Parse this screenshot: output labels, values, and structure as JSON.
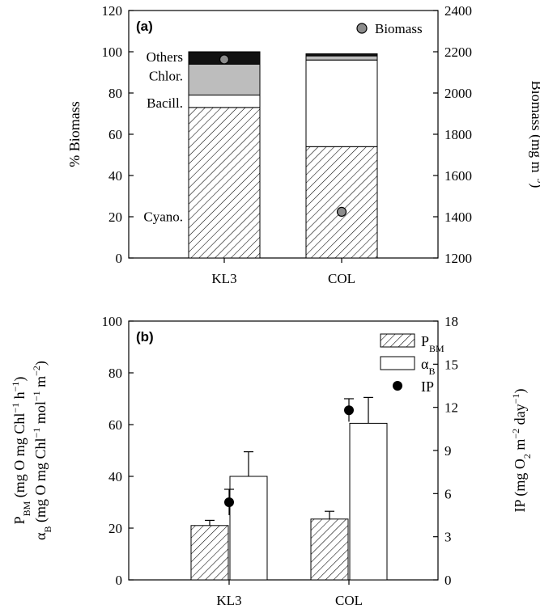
{
  "chart_data": [
    {
      "panel": "(a)",
      "type": "bar",
      "subtype": "stacked",
      "categories": [
        "KL3",
        "COL"
      ],
      "series": [
        {
          "name": "Cyano.",
          "values": [
            73,
            54
          ],
          "fill": "hatch"
        },
        {
          "name": "Bacill.",
          "values": [
            6,
            42
          ],
          "fill": "#ffffff"
        },
        {
          "name": "Chlor.",
          "values": [
            15,
            2
          ],
          "fill": "#bdbdbd"
        },
        {
          "name": "Others",
          "values": [
            6,
            1
          ],
          "fill": "#111111"
        }
      ],
      "points": {
        "name": "Biomass",
        "axis": "right",
        "values": [
          2163,
          1424
        ],
        "color": "#8c8c8c"
      },
      "ylabel": "% Biomass",
      "ylim": [
        0,
        120
      ],
      "yticks": [
        "0",
        "20",
        "40",
        "60",
        "80",
        "100",
        "120"
      ],
      "y2label": "Biomass (mg m",
      "y2label_sup": "−3",
      "y2label_end": ")",
      "y2lim": [
        1200,
        2400
      ],
      "y2ticks": [
        "1200",
        "1400",
        "1600",
        "1800",
        "2000",
        "2200",
        "2400"
      ],
      "legend": {
        "label": "Biomass",
        "placement": "top-right"
      },
      "grid": false
    },
    {
      "panel": "(b)",
      "type": "bar",
      "subtype": "grouped",
      "categories": [
        "KL3",
        "COL"
      ],
      "series": [
        {
          "name": "P",
          "name_sub": "BM",
          "values": [
            21,
            23.5
          ],
          "errors": [
            2,
            3
          ],
          "fill": "hatch",
          "axis": "left"
        },
        {
          "name": "α",
          "name_sub": "B",
          "values": [
            40,
            60.5
          ],
          "errors": [
            9.5,
            10
          ],
          "fill": "#ffffff",
          "axis": "left"
        }
      ],
      "points": {
        "name": "IP",
        "axis": "right",
        "values": [
          5.4,
          11.8
        ],
        "errors": [
          0.9,
          0.8
        ],
        "color": "#000000"
      },
      "ylabel_lines": [
        {
          "parts": [
            [
              "P",
              ""
            ],
            [
              "BM",
              "sub"
            ],
            [
              " (mg O mg Chl",
              ""
            ],
            [
              "−1",
              "sup"
            ],
            [
              " h",
              ""
            ],
            [
              "−1",
              "sup"
            ],
            [
              ")",
              ""
            ]
          ]
        },
        {
          "parts": [
            [
              "α",
              ""
            ],
            [
              "B",
              "sub"
            ],
            [
              " (mg O mg Chl",
              ""
            ],
            [
              "−1",
              "sup"
            ],
            [
              " mol",
              ""
            ],
            [
              "−1",
              "sup"
            ],
            [
              " m",
              ""
            ],
            [
              "−2",
              "sup"
            ],
            [
              ")",
              ""
            ]
          ]
        }
      ],
      "ylim": [
        0,
        100
      ],
      "yticks": [
        "0",
        "20",
        "40",
        "60",
        "80",
        "100"
      ],
      "y2label_parts": [
        [
          "IP (mg O",
          ""
        ],
        [
          "2",
          "sub"
        ],
        [
          " m",
          ""
        ],
        [
          "−2",
          "sup"
        ],
        [
          " day",
          ""
        ],
        [
          "−1",
          "sup"
        ],
        [
          ")",
          ""
        ]
      ],
      "y2lim": [
        0,
        18
      ],
      "y2ticks": [
        "0",
        "3",
        "6",
        "9",
        "12",
        "15",
        "18"
      ],
      "legend": {
        "placement": "top-right"
      },
      "grid": false
    }
  ]
}
